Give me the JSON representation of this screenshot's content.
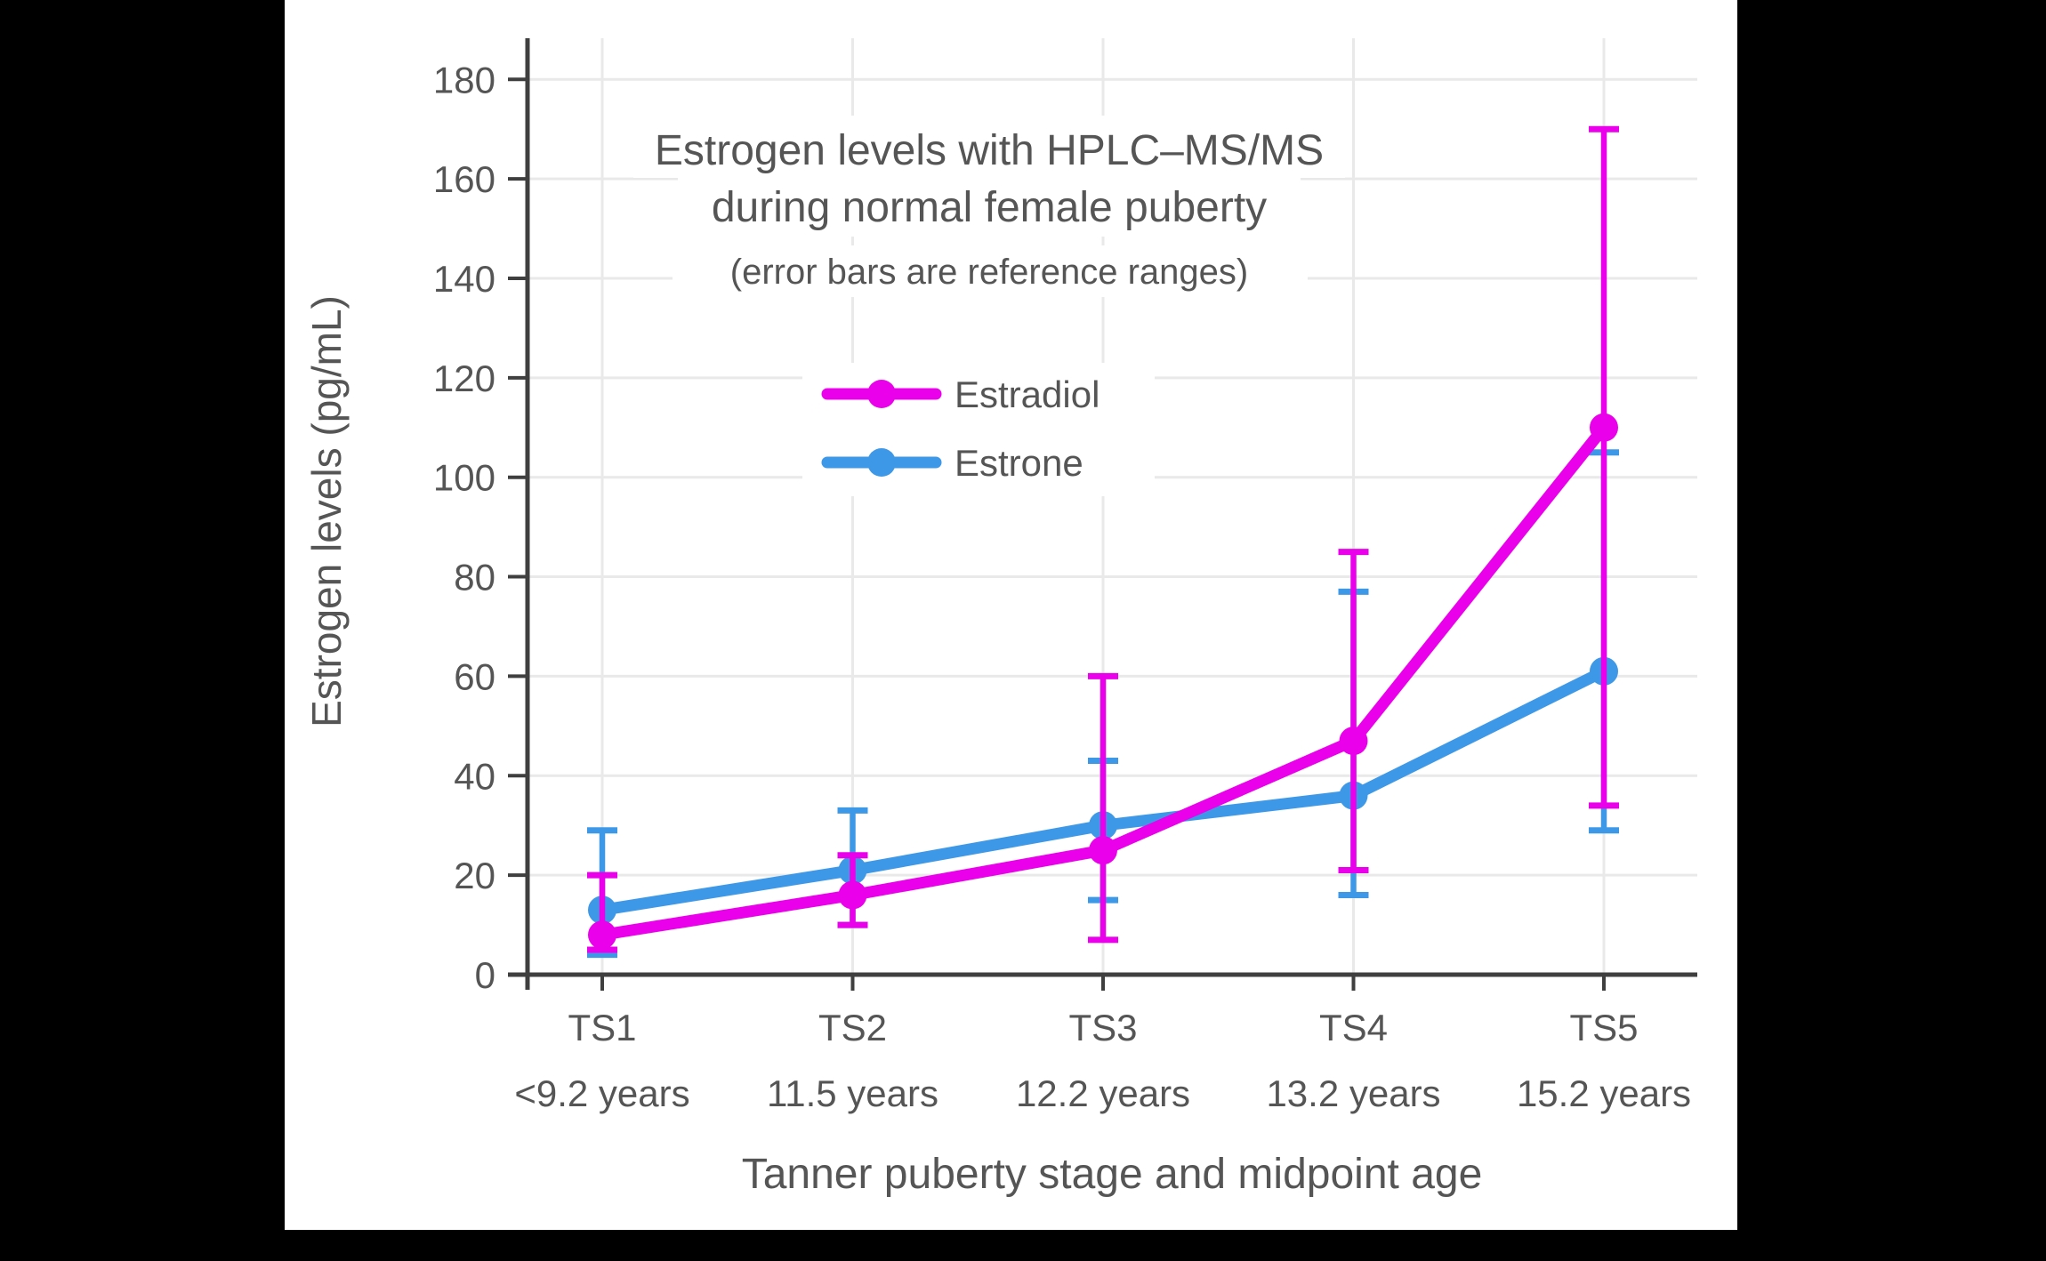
{
  "page": {
    "background_color": "#000000",
    "panel_color": "#ffffff"
  },
  "chart_data": {
    "type": "line",
    "title_line1": "Estrogen levels with HPLC–MS/MS",
    "title_line2": "during normal female puberty",
    "subtitle": "(error bars are reference ranges)",
    "xlabel": "Tanner puberty stage and midpoint age",
    "ylabel": "Estrogen levels (pg/mL)",
    "categories": [
      "TS1",
      "TS2",
      "TS3",
      "TS4",
      "TS5"
    ],
    "category_ages": [
      "<9.2 years",
      "11.5 years",
      "12.2 years",
      "13.2 years",
      "15.2 years"
    ],
    "yticks": [
      0,
      20,
      40,
      60,
      80,
      100,
      120,
      140,
      160,
      180
    ],
    "ylim": [
      0,
      188
    ],
    "grid": true,
    "error_bar_meaning": "reference ranges (absolute low/high values)",
    "series": [
      {
        "name": "Estrone",
        "color": "#3E98E8",
        "values": [
          13,
          21,
          30,
          36,
          61
        ],
        "error_low": [
          4,
          10,
          15,
          16,
          29
        ],
        "error_high": [
          29,
          33,
          43,
          77,
          105
        ]
      },
      {
        "name": "Estradiol",
        "color": "#EB00EB",
        "values": [
          8,
          16,
          25,
          47,
          110
        ],
        "error_low": [
          5,
          10,
          7,
          21,
          34
        ],
        "error_high": [
          20,
          24,
          60,
          85,
          170
        ]
      }
    ],
    "legend": {
      "position": "inside-upper-center",
      "items": [
        "Estradiol",
        "Estrone"
      ]
    },
    "text_color": "#555555",
    "axis_color": "#3F3F3F",
    "grid_color": "#E9E9E9"
  }
}
